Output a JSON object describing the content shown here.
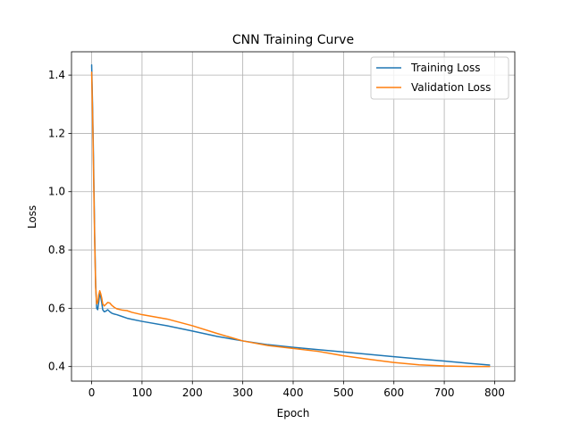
{
  "chart_data": {
    "type": "line",
    "title": "CNN Training Curve",
    "xlabel": "Epoch",
    "ylabel": "Loss",
    "xlim": [
      -40,
      840
    ],
    "ylim": [
      0.35,
      1.48
    ],
    "xticks": [
      0,
      100,
      200,
      300,
      400,
      500,
      600,
      700,
      800
    ],
    "yticks": [
      0.4,
      0.6,
      0.8,
      1.0,
      1.2,
      1.4
    ],
    "xtick_labels": [
      "0",
      "100",
      "200",
      "300",
      "400",
      "500",
      "600",
      "700",
      "800"
    ],
    "ytick_labels": [
      "0.4",
      "0.6",
      "0.8",
      "1.0",
      "1.2",
      "1.4"
    ],
    "grid": true,
    "legend_position": "top-right",
    "series": [
      {
        "name": "Training Loss",
        "color": "#1f77b4",
        "x": [
          0,
          2,
          4,
          6,
          8,
          10,
          12,
          14,
          16,
          18,
          20,
          22,
          25,
          28,
          32,
          36,
          40,
          45,
          50,
          60,
          70,
          80,
          100,
          150,
          200,
          250,
          300,
          350,
          400,
          450,
          500,
          550,
          600,
          650,
          700,
          750,
          790
        ],
        "y": [
          1.435,
          1.28,
          1.08,
          0.85,
          0.68,
          0.6,
          0.595,
          0.62,
          0.65,
          0.64,
          0.62,
          0.595,
          0.588,
          0.59,
          0.595,
          0.588,
          0.583,
          0.58,
          0.578,
          0.572,
          0.566,
          0.562,
          0.555,
          0.54,
          0.522,
          0.503,
          0.488,
          0.475,
          0.466,
          0.458,
          0.45,
          0.442,
          0.434,
          0.426,
          0.419,
          0.411,
          0.405
        ]
      },
      {
        "name": "Validation Loss",
        "color": "#ff7f0e",
        "x": [
          0,
          2,
          4,
          6,
          8,
          10,
          12,
          14,
          16,
          18,
          20,
          22,
          25,
          28,
          32,
          36,
          40,
          45,
          50,
          60,
          70,
          80,
          100,
          150,
          200,
          250,
          300,
          350,
          400,
          450,
          500,
          550,
          600,
          650,
          700,
          750,
          790
        ],
        "y": [
          1.41,
          1.25,
          1.04,
          0.83,
          0.67,
          0.615,
          0.62,
          0.645,
          0.66,
          0.65,
          0.635,
          0.615,
          0.608,
          0.613,
          0.62,
          0.618,
          0.61,
          0.603,
          0.598,
          0.594,
          0.592,
          0.586,
          0.578,
          0.563,
          0.54,
          0.513,
          0.488,
          0.472,
          0.462,
          0.452,
          0.437,
          0.425,
          0.414,
          0.406,
          0.402,
          0.4,
          0.4
        ]
      }
    ]
  }
}
